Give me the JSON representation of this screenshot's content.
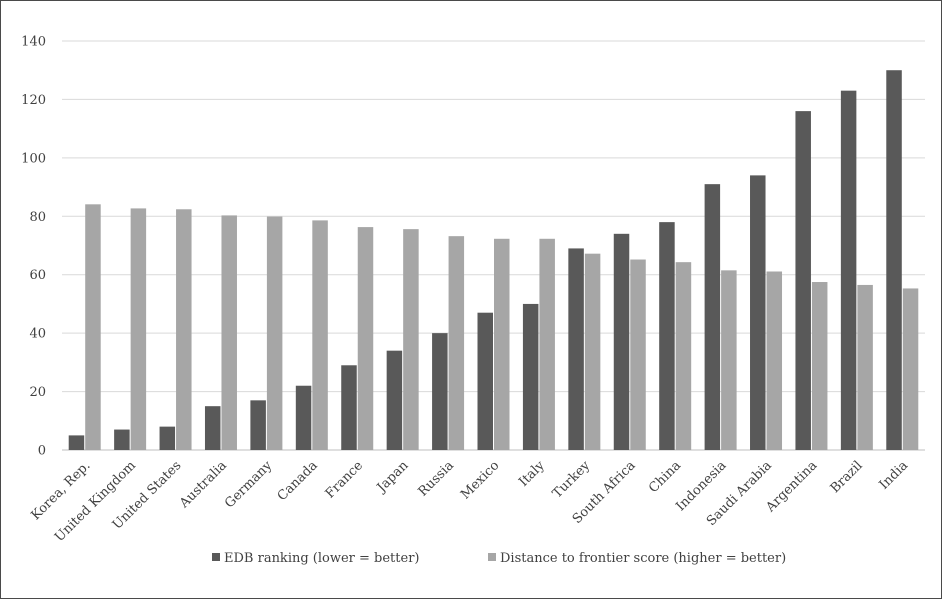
{
  "chart_data": {
    "type": "bar",
    "categories": [
      "Korea, Rep.",
      "United Kingdom",
      "United States",
      "Australia",
      "Germany",
      "Canada",
      "France",
      "Japan",
      "Russia",
      "Mexico",
      "Italy",
      "Turkey",
      "South Africa",
      "China",
      "Indonesia",
      "Saudi Arabia",
      "Argentina",
      "Brazil",
      "India"
    ],
    "series": [
      {
        "name": "EDB ranking (lower = better)",
        "color": "#595959",
        "values": [
          5,
          7,
          8,
          15,
          17,
          22,
          29,
          34,
          40,
          47,
          50,
          69,
          74,
          78,
          91,
          94,
          116,
          123,
          130
        ]
      },
      {
        "name": "Distance to frontier score (higher = better)",
        "color": "#a6a6a6",
        "values": [
          84.1,
          82.7,
          82.4,
          80.3,
          79.9,
          78.6,
          76.3,
          75.6,
          73.2,
          72.3,
          72.3,
          67.2,
          65.2,
          64.3,
          61.5,
          61.1,
          57.5,
          56.5,
          55.3
        ]
      }
    ],
    "yticks": [
      "0",
      "20",
      "40",
      "60",
      "80",
      "100",
      "120",
      "140"
    ],
    "ylim": [
      0,
      140
    ],
    "grid": true,
    "legend_position": "bottom"
  }
}
